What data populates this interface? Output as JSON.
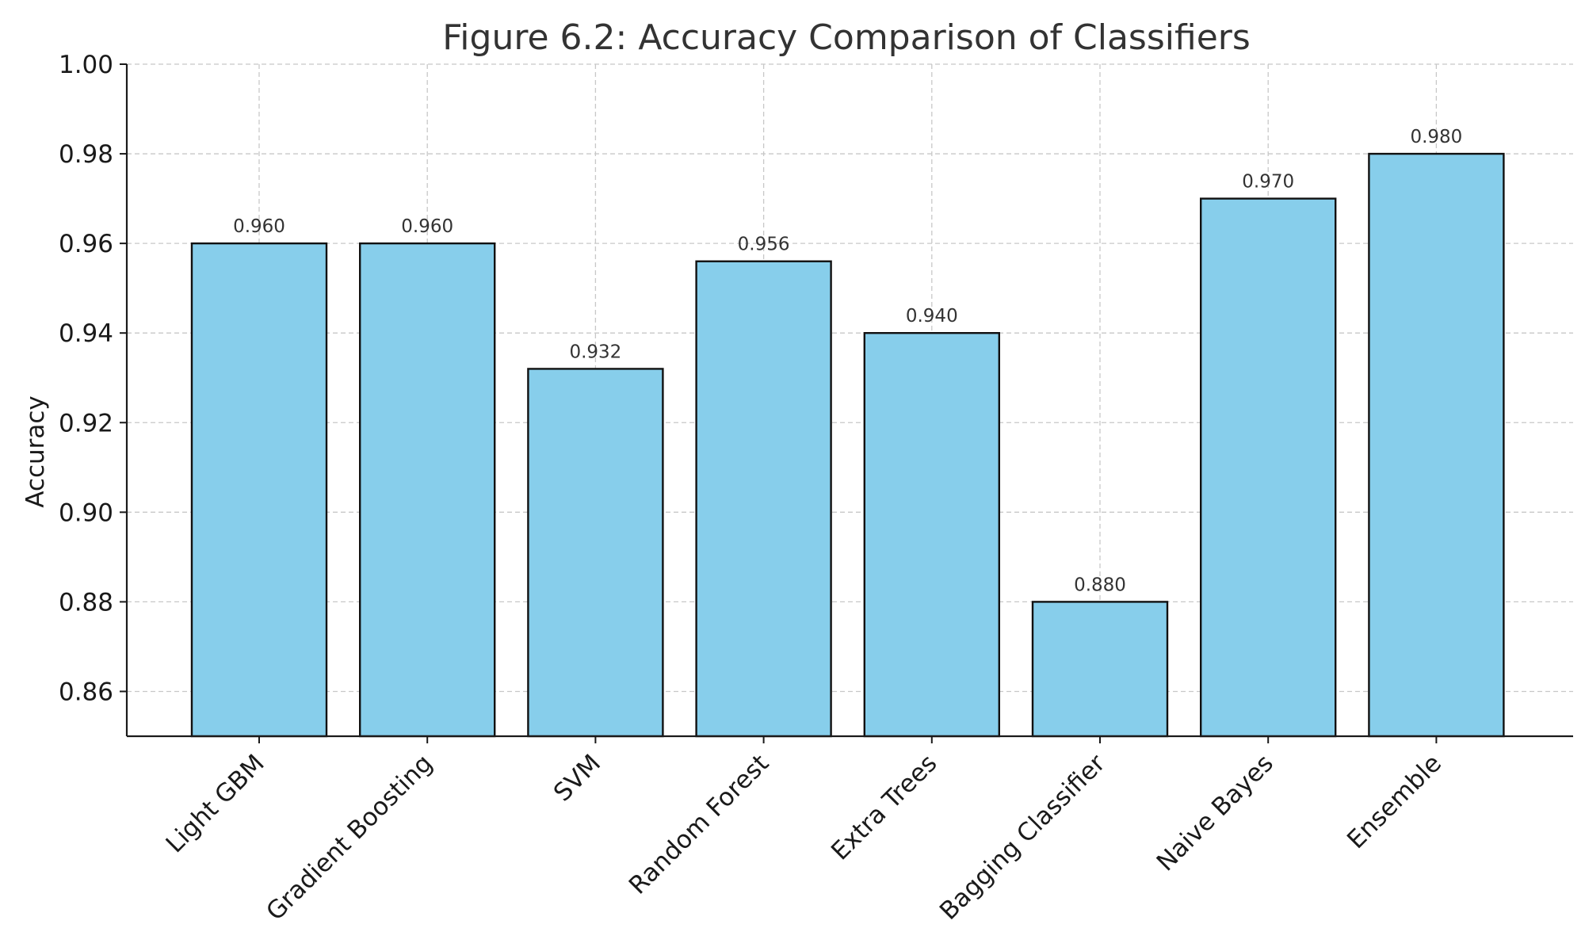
{
  "chart_data": {
    "type": "bar",
    "title": "Figure 6.2: Accuracy Comparison of Classifiers",
    "xlabel": "",
    "ylabel": "Accuracy",
    "categories": [
      "Light GBM",
      "Gradient Boosting",
      "SVM",
      "Random Forest",
      "Extra Trees",
      "Bagging Classifier",
      "Naive Bayes",
      "Ensemble"
    ],
    "values": [
      0.96,
      0.96,
      0.932,
      0.956,
      0.94,
      0.88,
      0.97,
      0.98
    ],
    "value_labels": [
      "0.960",
      "0.960",
      "0.932",
      "0.956",
      "0.940",
      "0.880",
      "0.970",
      "0.980"
    ],
    "ylim": [
      0.85,
      1.0
    ],
    "yticks": [
      0.86,
      0.88,
      0.9,
      0.92,
      0.94,
      0.96,
      0.98,
      1.0
    ],
    "ytick_labels": [
      "0.86",
      "0.88",
      "0.90",
      "0.92",
      "0.94",
      "0.96",
      "0.98",
      "1.00"
    ],
    "grid": true,
    "legend": "none",
    "bar_color": "#87CEEB",
    "bar_edge_color": "#111111"
  }
}
